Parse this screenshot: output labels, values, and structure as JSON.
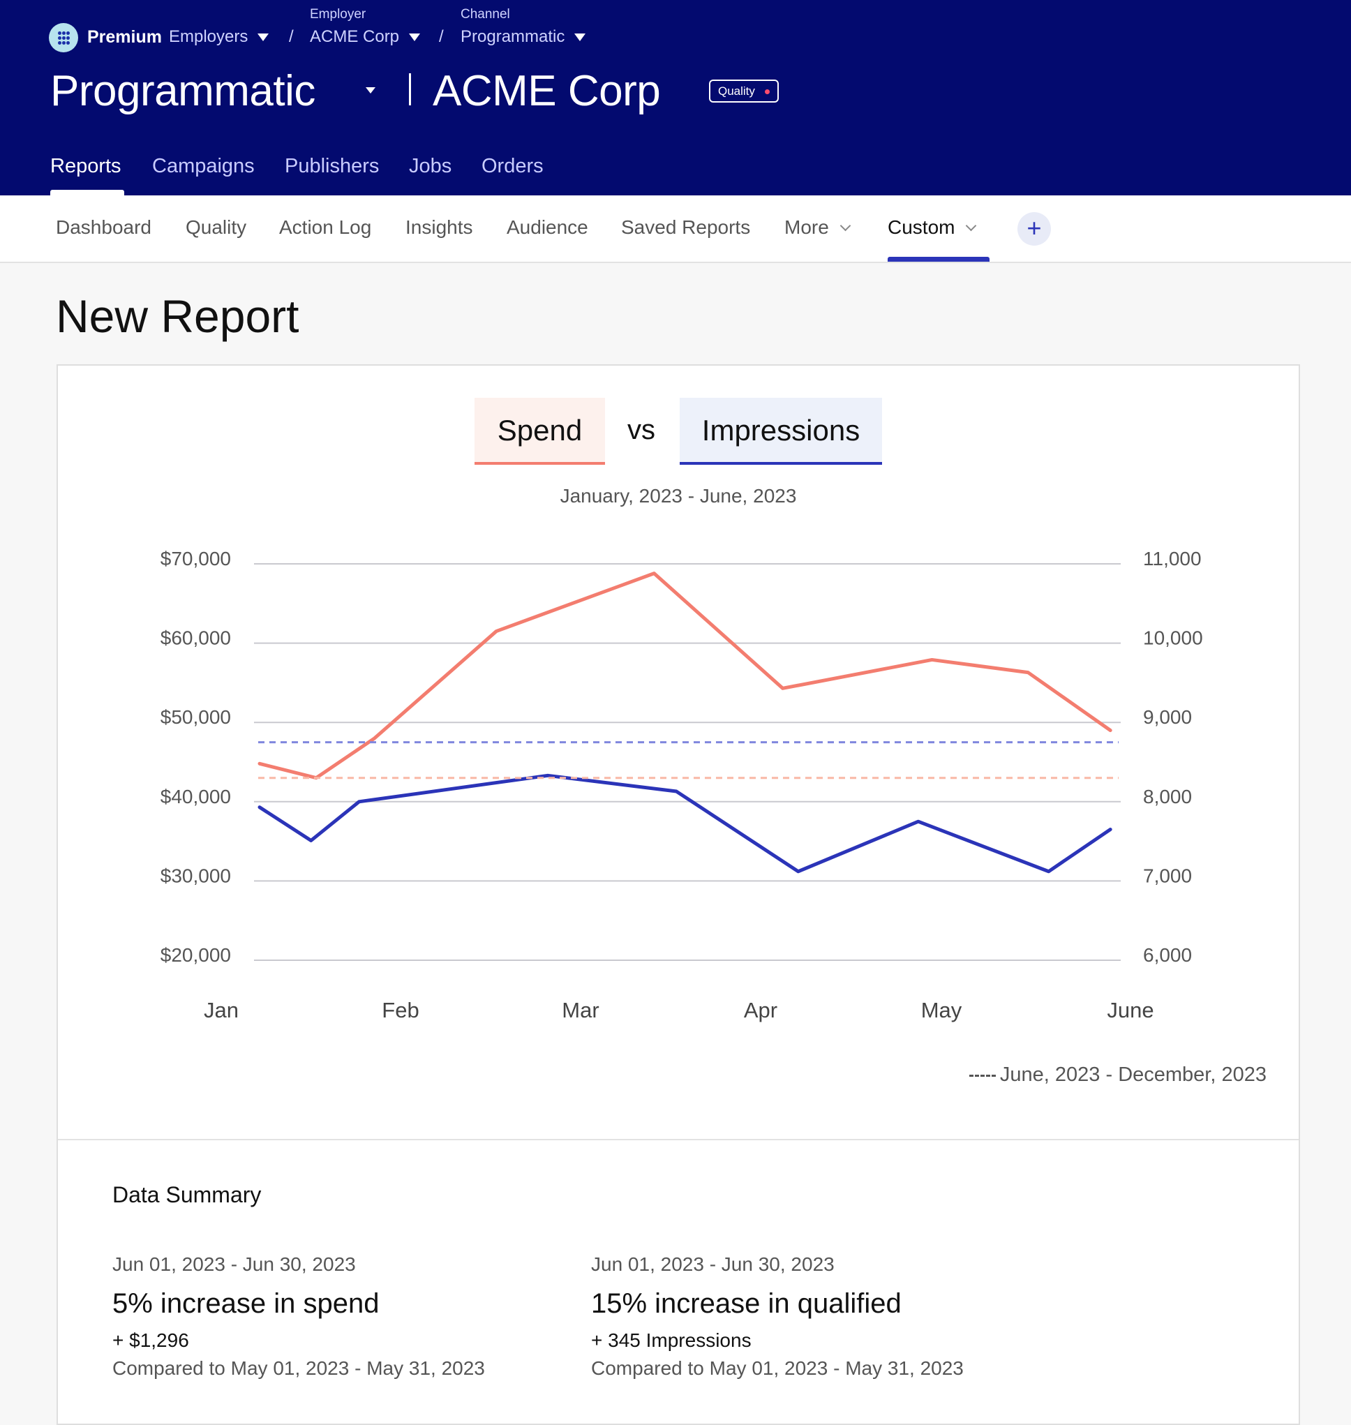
{
  "header": {
    "brand": "Premium",
    "breadcrumb": {
      "employers_label": "Employers",
      "employer_caption": "Employer",
      "employer_value": "ACME Corp",
      "channel_caption": "Channel",
      "channel_value": "Programmatic",
      "separator": "/"
    },
    "title": "Programmatic",
    "employer_title": "ACME Corp",
    "badge": "Quality",
    "tabs": [
      "Reports",
      "Campaigns",
      "Publishers",
      "Jobs",
      "Orders"
    ],
    "active_tab": "Reports"
  },
  "sub_nav": {
    "tabs": [
      "Dashboard",
      "Quality",
      "Action Log",
      "Insights",
      "Audience",
      "Saved Reports",
      "More",
      "Custom"
    ],
    "active_tab": "Custom",
    "add_label": "+"
  },
  "page": {
    "title": "New Report"
  },
  "report": {
    "metric_a": "Spend",
    "vs": "vs",
    "metric_b": "Impressions",
    "date_range": "January, 2023 - June, 2023",
    "comparison_legend": "June, 2023 - December, 2023"
  },
  "chart_data": {
    "type": "line",
    "x_ticks": [
      "Jan",
      "Feb",
      "Mar",
      "Apr",
      "May",
      "June"
    ],
    "y_left": {
      "ticks": [
        "$70,000",
        "$60,000",
        "$50,000",
        "$40,000",
        "$30,000",
        "$20,000"
      ],
      "range": [
        20000,
        70000
      ]
    },
    "y_right": {
      "ticks": [
        "11,000",
        "10,000",
        "9,000",
        "8,000",
        "7,000",
        "6,000"
      ],
      "range": [
        6000,
        11000
      ]
    },
    "grid": true,
    "series": [
      {
        "name": "Spend",
        "axis": "left",
        "color": "#f37d6f",
        "points": [
          [
            0.0,
            44800
          ],
          [
            0.33,
            43000
          ],
          [
            0.67,
            48000
          ],
          [
            1.38,
            61500
          ],
          [
            2.3,
            68800
          ],
          [
            3.05,
            54300
          ],
          [
            3.92,
            57900
          ],
          [
            4.48,
            56300
          ],
          [
            4.96,
            49000
          ]
        ]
      },
      {
        "name": "Impressions",
        "axis": "right",
        "color": "#2b34b8",
        "points": [
          [
            0.0,
            7930
          ],
          [
            0.3,
            7510
          ],
          [
            0.58,
            8000
          ],
          [
            1.68,
            8330
          ],
          [
            2.43,
            8130
          ],
          [
            3.14,
            7120
          ],
          [
            3.84,
            7750
          ],
          [
            4.6,
            7120
          ],
          [
            4.96,
            7650
          ]
        ]
      },
      {
        "name": "Spend (comparison average)",
        "axis": "left",
        "color": "#f9b8a6",
        "dashed": true,
        "constant": 43000
      },
      {
        "name": "Impressions (comparison average)",
        "axis": "right",
        "color": "#8087de",
        "dashed": true,
        "constant": 8750
      }
    ]
  },
  "summary": {
    "title": "Data Summary",
    "items": [
      {
        "date": "Jun 01, 2023 - Jun 30, 2023",
        "headline": "5% increase in spend",
        "delta": "+ $1,296",
        "compare": "Compared to May 01, 2023 - May 31, 2023"
      },
      {
        "date": "Jun 01, 2023 - Jun 30, 2023",
        "headline": "15% increase in qualified",
        "delta": "+ 345 Impressions",
        "compare": "Compared to May 01, 2023 - May 31, 2023"
      }
    ]
  },
  "icons": [
    "premium-logo-icon",
    "caret-down-icon",
    "chevron-down-icon",
    "plus-icon"
  ]
}
